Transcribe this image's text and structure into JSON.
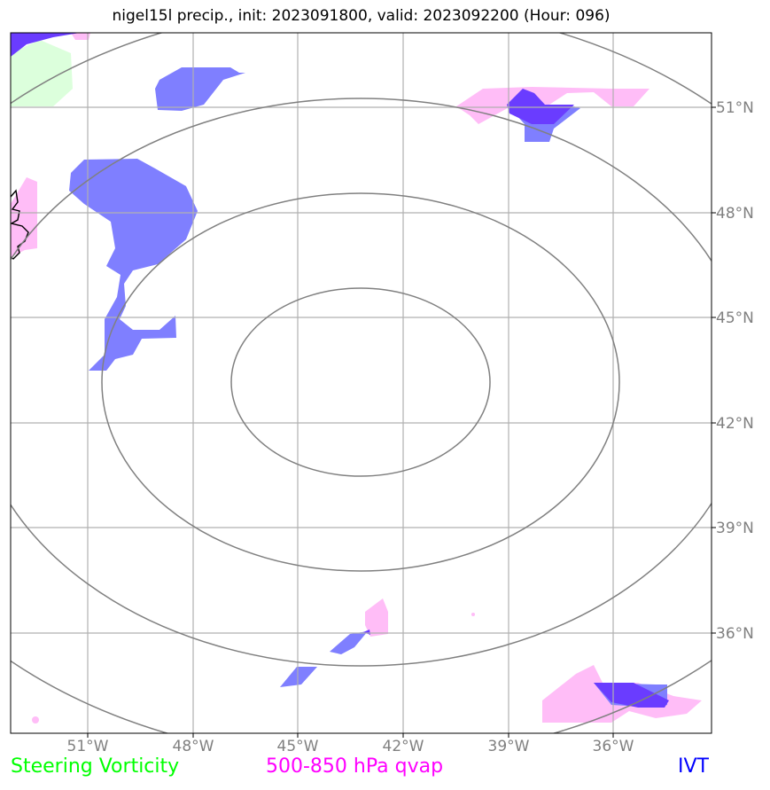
{
  "title": "nigel15l precip., init: 2023091800, valid: 2023092200 (Hour: 096)",
  "lat_labels": [
    "51°N",
    "48°N",
    "45°N",
    "42°N",
    "39°N",
    "36°N"
  ],
  "lon_labels": [
    "51°W",
    "48°W",
    "45°W",
    "42°W",
    "39°W",
    "36°W"
  ],
  "legend": [
    {
      "label": "Steering Vorticity",
      "color": "#00ff00"
    },
    {
      "label": "500-850 hPa qvap",
      "color": "#ff00ff"
    },
    {
      "label": "IVT",
      "color": "#0000ff"
    }
  ],
  "colors": {
    "ivt_fill": "#7f7fff",
    "ivt_strong": "#6a3cff",
    "qvap_fill": "#ffbdf7",
    "vorticity_fill": "#dcffdc",
    "range_rings": "#808080",
    "gridlines": "#b0b0b0"
  }
}
